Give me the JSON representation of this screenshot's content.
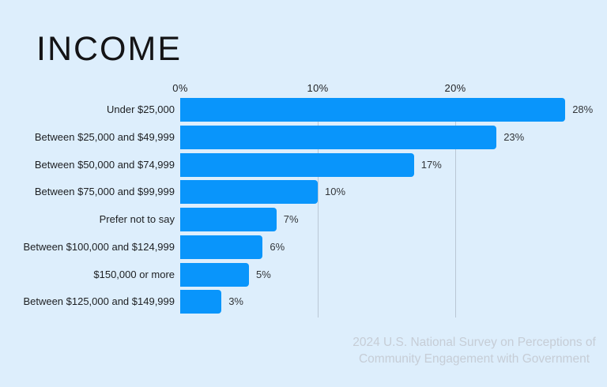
{
  "title": "INCOME",
  "chart_data": {
    "type": "bar",
    "orientation": "horizontal",
    "title": "INCOME",
    "xlabel": "",
    "ylabel": "",
    "categories": [
      "Under $25,000",
      "Between $25,000 and $49,999",
      "Between $50,000 and $74,999",
      "Between $75,000 and $99,999",
      "Prefer not to say",
      "Between $100,000 and $124,999",
      "$150,000 or more",
      "Between $125,000 and $149,999"
    ],
    "values": [
      28,
      23,
      17,
      10,
      7,
      6,
      5,
      3
    ],
    "value_labels": [
      "28%",
      "23%",
      "17%",
      "10%",
      "7%",
      "6%",
      "5%",
      "3%"
    ],
    "axis": {
      "ticks": [
        {
          "value": 0,
          "label": "0%"
        },
        {
          "value": 10,
          "label": "10%"
        },
        {
          "value": 20,
          "label": "20%"
        }
      ],
      "xlim": [
        0,
        31
      ],
      "gridlines_at": [
        10,
        20
      ],
      "grid": "vertical"
    },
    "legend": "none",
    "sorted": "descending"
  },
  "source_note": {
    "line1": "2024 U.S. National Survey on Perceptions of",
    "line2": "Community Engagement with Government"
  },
  "colors": {
    "background": "#ddeefc",
    "bar": "#0995fb",
    "gridline": "#b9c7d5",
    "title_text": "#141416",
    "label_text": "#1d1f22",
    "value_text": "#33363a",
    "source_text": "#c6cdd6"
  }
}
